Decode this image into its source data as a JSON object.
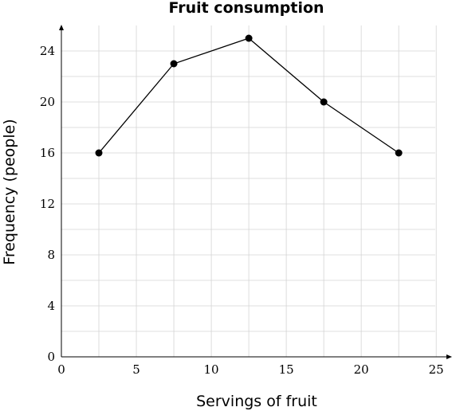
{
  "chart_data": {
    "type": "line",
    "title": "Fruit consumption",
    "xlabel": "Servings of fruit",
    "ylabel": "Frequency (people)",
    "xlim": [
      0,
      26
    ],
    "ylim": [
      0,
      26
    ],
    "x_ticks": [
      0,
      5,
      10,
      15,
      20,
      25
    ],
    "y_ticks": [
      0,
      4,
      8,
      12,
      16,
      20,
      24
    ],
    "x_grid": [
      0,
      2.5,
      5,
      7.5,
      10,
      12.5,
      15,
      17.5,
      20,
      22.5,
      25
    ],
    "y_grid": [
      0,
      2,
      4,
      6,
      8,
      10,
      12,
      14,
      16,
      18,
      20,
      22,
      24
    ],
    "grid": true,
    "legend": "none",
    "x": [
      2.5,
      7.5,
      12.5,
      17.5,
      22.5
    ],
    "series": [
      {
        "values": [
          16,
          23,
          25,
          20,
          16
        ]
      }
    ],
    "line_color": "#000000",
    "grid_color": "#d4d4d4"
  }
}
